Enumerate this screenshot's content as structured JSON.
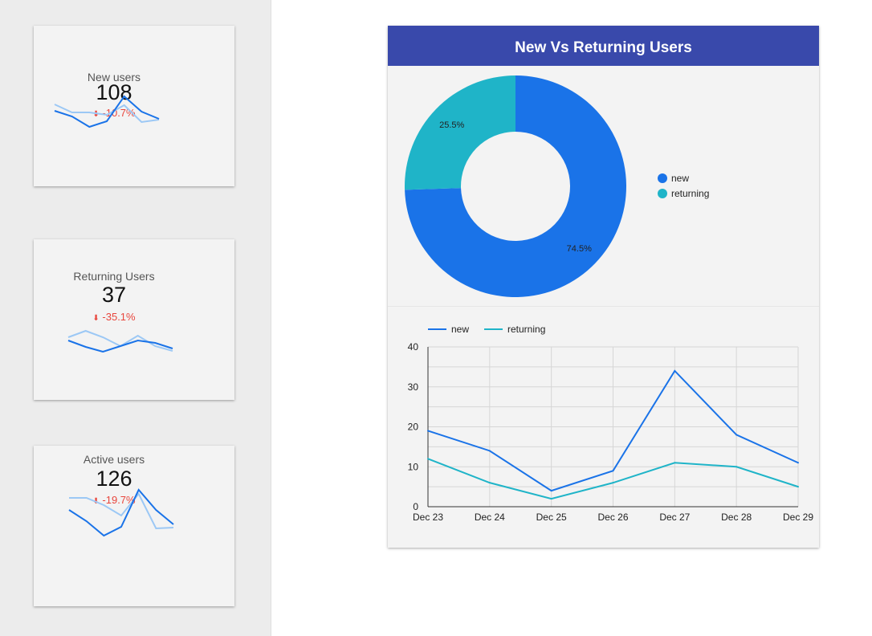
{
  "cards": [
    {
      "label": "New users",
      "value": "108",
      "delta": "-10.7%",
      "icon": "arrow-down-icon",
      "spark": {
        "current": [
          24,
          17,
          4,
          11,
          42,
          23,
          14
        ],
        "previous": [
          32,
          22,
          22,
          19,
          31,
          10,
          13
        ]
      }
    },
    {
      "label": "Returning Users",
      "value": "37",
      "delta": "-35.1%",
      "icon": "arrow-down-icon",
      "spark": {
        "current": [
          20,
          12,
          6,
          13,
          20,
          17,
          10
        ],
        "previous": [
          24,
          32,
          24,
          13,
          26,
          13,
          7
        ]
      }
    },
    {
      "label": "Active users",
      "value": "126",
      "delta": "-19.7%",
      "icon": "arrow-down-icon",
      "spark": {
        "current": [
          38,
          24,
          6,
          17,
          63,
          38,
          20
        ],
        "previous": [
          53,
          53,
          44,
          31,
          58,
          15,
          16
        ]
      }
    }
  ],
  "colors": {
    "header": "#3949ab",
    "new": "#1a73e8",
    "returning": "#1fb4c8",
    "spark_current": "#1a73e8",
    "spark_previous": "#9cc8f5",
    "negative": "#e8453c"
  },
  "panel": {
    "title": "New Vs Returning Users"
  },
  "chart_data": [
    {
      "type": "pie",
      "donut": true,
      "slices": [
        {
          "name": "new",
          "value": 74.5,
          "label": "74.5%"
        },
        {
          "name": "returning",
          "value": 25.5,
          "label": "25.5%"
        }
      ],
      "legend": "right"
    },
    {
      "type": "line",
      "categories": [
        "Dec 23",
        "Dec 24",
        "Dec 25",
        "Dec 26",
        "Dec 27",
        "Dec 28",
        "Dec 29"
      ],
      "series": [
        {
          "name": "new",
          "values": [
            19,
            14,
            4,
            9,
            34,
            18,
            11
          ]
        },
        {
          "name": "returning",
          "values": [
            12,
            6,
            2,
            6,
            11,
            10,
            5
          ]
        }
      ],
      "ylim": [
        0,
        40
      ],
      "yticks": [
        "0",
        "10",
        "20",
        "30",
        "40"
      ],
      "grid": true,
      "legend": "top-left"
    }
  ]
}
